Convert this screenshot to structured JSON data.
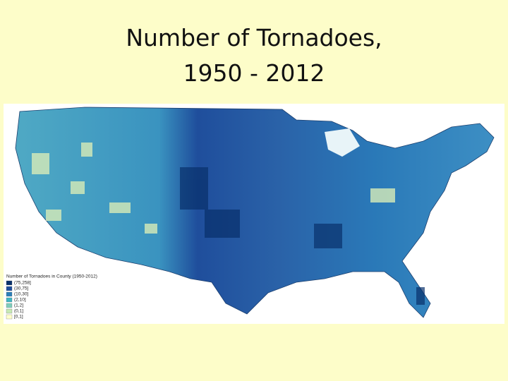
{
  "title": {
    "lines": [
      "Number of Tornadoes,",
      "1950 - 2012"
    ]
  },
  "legend": {
    "title": "Number of Tornadoes in County (1950-2012)",
    "items": [
      {
        "label": "(75,258]",
        "color": "#08306b"
      },
      {
        "label": "(30,75]",
        "color": "#1f4e9c"
      },
      {
        "label": "(10,30]",
        "color": "#2c7fb8"
      },
      {
        "label": "(2,10]",
        "color": "#41b6c4"
      },
      {
        "label": "(1,2]",
        "color": "#7fcdbb"
      },
      {
        "label": "(0,1]",
        "color": "#c7e9b4"
      },
      {
        "label": "[0,1]",
        "color": "#ffffcc"
      }
    ]
  }
}
